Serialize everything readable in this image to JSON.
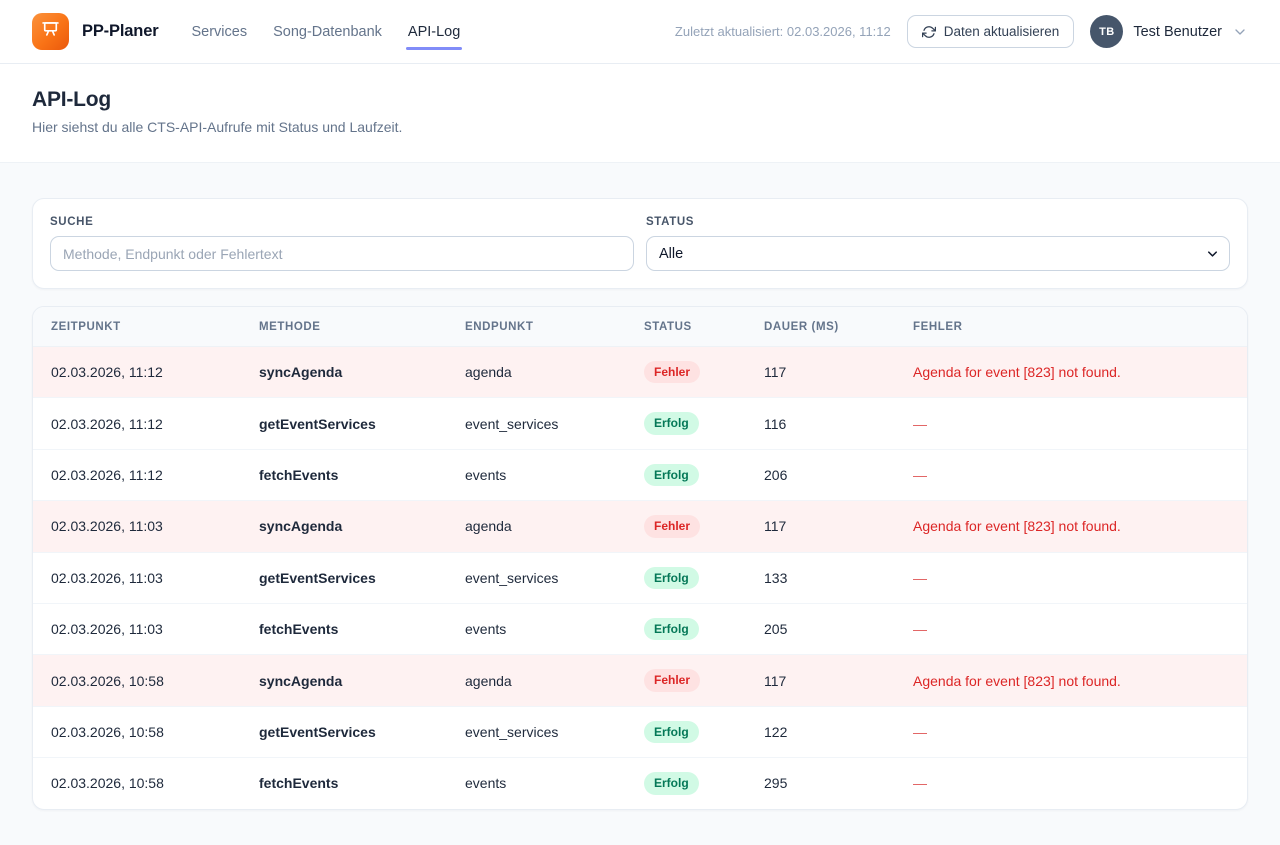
{
  "brand": {
    "name": "PP-Planer"
  },
  "nav": {
    "items": [
      {
        "label": "Services",
        "active": false
      },
      {
        "label": "Song-Datenbank",
        "active": false
      },
      {
        "label": "API-Log",
        "active": true
      }
    ]
  },
  "topbar_right": {
    "last_updated": "Zuletzt aktualisiert: 02.03.2026, 11:12",
    "refresh_label": "Daten aktualisieren",
    "avatar_initials": "TB",
    "user_name": "Test Benutzer"
  },
  "page": {
    "title": "API-Log",
    "subtitle": "Hier siehst du alle CTS-API-Aufrufe mit Status und Laufzeit."
  },
  "filters": {
    "search_label": "SUCHE",
    "search_placeholder": "Methode, Endpunkt oder Fehlertext",
    "search_value": "",
    "status_label": "STATUS",
    "status_value": "Alle"
  },
  "table": {
    "columns": [
      "ZEITPUNKT",
      "METHODE",
      "ENDPUNKT",
      "STATUS",
      "DAUER (MS)",
      "FEHLER"
    ],
    "rows": [
      {
        "zeitpunkt": "02.03.2026, 11:12",
        "methode": "syncAgenda",
        "endpunkt": "agenda",
        "status": "Fehler",
        "status_type": "error",
        "dauer": "117",
        "fehler": "Agenda for event [823] not found."
      },
      {
        "zeitpunkt": "02.03.2026, 11:12",
        "methode": "getEventServices",
        "endpunkt": "event_services",
        "status": "Erfolg",
        "status_type": "success",
        "dauer": "116",
        "fehler": "—"
      },
      {
        "zeitpunkt": "02.03.2026, 11:12",
        "methode": "fetchEvents",
        "endpunkt": "events",
        "status": "Erfolg",
        "status_type": "success",
        "dauer": "206",
        "fehler": "—"
      },
      {
        "zeitpunkt": "02.03.2026, 11:03",
        "methode": "syncAgenda",
        "endpunkt": "agenda",
        "status": "Fehler",
        "status_type": "error",
        "dauer": "117",
        "fehler": "Agenda for event [823] not found."
      },
      {
        "zeitpunkt": "02.03.2026, 11:03",
        "methode": "getEventServices",
        "endpunkt": "event_services",
        "status": "Erfolg",
        "status_type": "success",
        "dauer": "133",
        "fehler": "—"
      },
      {
        "zeitpunkt": "02.03.2026, 11:03",
        "methode": "fetchEvents",
        "endpunkt": "events",
        "status": "Erfolg",
        "status_type": "success",
        "dauer": "205",
        "fehler": "—"
      },
      {
        "zeitpunkt": "02.03.2026, 10:58",
        "methode": "syncAgenda",
        "endpunkt": "agenda",
        "status": "Fehler",
        "status_type": "error",
        "dauer": "117",
        "fehler": "Agenda for event [823] not found."
      },
      {
        "zeitpunkt": "02.03.2026, 10:58",
        "methode": "getEventServices",
        "endpunkt": "event_services",
        "status": "Erfolg",
        "status_type": "success",
        "dauer": "122",
        "fehler": "—"
      },
      {
        "zeitpunkt": "02.03.2026, 10:58",
        "methode": "fetchEvents",
        "endpunkt": "events",
        "status": "Erfolg",
        "status_type": "success",
        "dauer": "295",
        "fehler": "—"
      }
    ]
  },
  "colors": {
    "accent_underline": "#818cf8",
    "logo_orange": "#f97316",
    "error_text": "#dc2626",
    "error_row_bg": "#fef2f2",
    "error_badge_bg": "#fee2e2",
    "success_badge_bg": "#d1fae5",
    "success_text": "#047857"
  }
}
